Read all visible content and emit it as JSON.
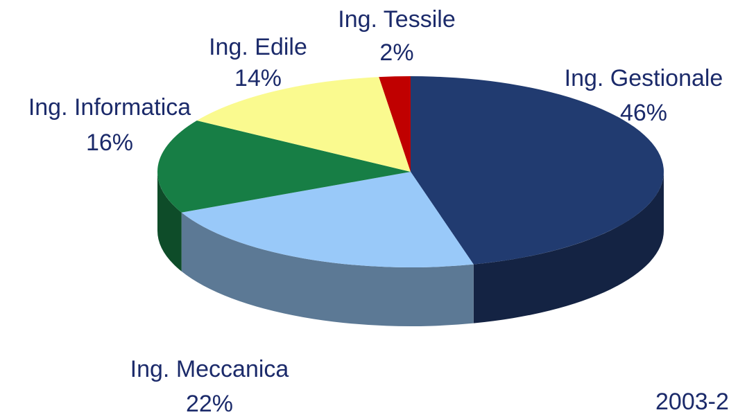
{
  "chart_data": {
    "type": "pie",
    "categories": [
      "Ing. Gestionale",
      "Ing. Meccanica",
      "Ing. Informatica",
      "Ing. Edile",
      "Ing. Tessile"
    ],
    "values": [
      46,
      22,
      16,
      14,
      2
    ],
    "value_labels": [
      "46%",
      "22%",
      "16%",
      "14%",
      "2%"
    ],
    "colors": [
      "#213b70",
      "#99c9f9",
      "#177e45",
      "#fafa8f",
      "#c00000"
    ],
    "annotation": "2003-2"
  }
}
